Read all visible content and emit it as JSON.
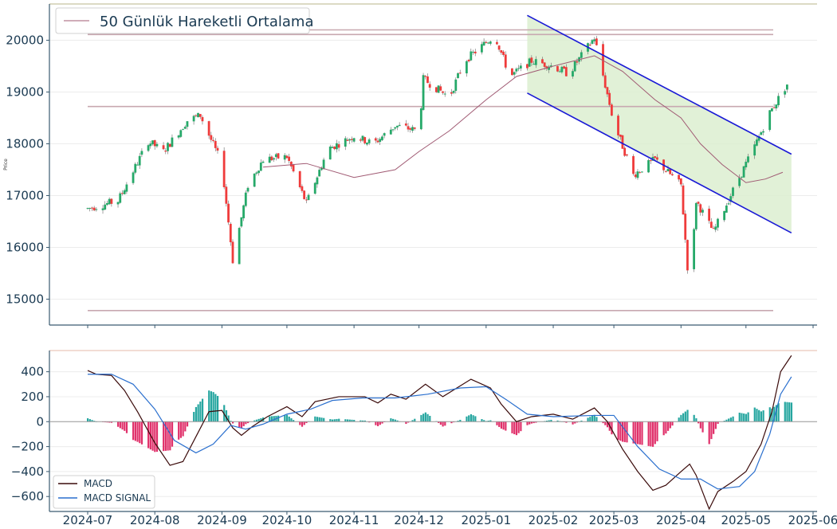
{
  "chart_data": [
    {
      "type": "candlestick",
      "ylabel": "Price",
      "ylim": [
        14500,
        20700
      ],
      "yticks": [
        15000,
        16000,
        17000,
        18000,
        19000,
        20000
      ],
      "legend": {
        "placement": "top-left",
        "entries": [
          {
            "name": "50 Günlük Hareketli Ortalama",
            "color": "#a05a73"
          }
        ]
      },
      "grid": true,
      "colors": {
        "up": "#26a969",
        "down": "#ef3b3b",
        "ma": "#a05a73",
        "level_lines": "#c8a8b0",
        "channel": "#1a1ad6",
        "channel_fill": "#dcefd0"
      },
      "price_path": [
        [
          "2024-07-01",
          16750
        ],
        [
          "2024-07-15",
          16900
        ],
        [
          "2024-07-29",
          18050
        ],
        [
          "2024-08-05",
          17850
        ],
        [
          "2024-08-16",
          18450
        ],
        [
          "2024-08-22",
          18550
        ],
        [
          "2024-09-01",
          17600
        ],
        [
          "2024-09-06",
          15750
        ],
        [
          "2024-09-13",
          17200
        ],
        [
          "2024-09-20",
          17700
        ],
        [
          "2024-10-01",
          17750
        ],
        [
          "2024-10-10",
          16850
        ],
        [
          "2024-10-20",
          17900
        ],
        [
          "2024-11-01",
          18150
        ],
        [
          "2024-11-10",
          18000
        ],
        [
          "2024-11-20",
          18350
        ],
        [
          "2024-12-01",
          18250
        ],
        [
          "2024-12-03",
          19250
        ],
        [
          "2024-12-15",
          18900
        ],
        [
          "2024-12-22",
          19600
        ],
        [
          "2025-01-05",
          20100
        ],
        [
          "2025-01-12",
          19300
        ],
        [
          "2025-01-22",
          19600
        ],
        [
          "2025-02-01",
          19500
        ],
        [
          "2025-02-08",
          19350
        ],
        [
          "2025-02-20",
          20050
        ],
        [
          "2025-03-01",
          18400
        ],
        [
          "2025-03-10",
          17400
        ],
        [
          "2025-03-20",
          17700
        ],
        [
          "2025-04-01",
          17200
        ],
        [
          "2025-04-05",
          15100
        ],
        [
          "2025-04-08",
          16900
        ],
        [
          "2025-04-16",
          16300
        ],
        [
          "2025-04-25",
          17100
        ],
        [
          "2025-05-05",
          17950
        ],
        [
          "2025-05-12",
          18600
        ],
        [
          "2025-05-20",
          19150
        ]
      ],
      "ma_50": [
        [
          "2024-09-20",
          17550
        ],
        [
          "2024-10-10",
          17620
        ],
        [
          "2024-11-01",
          17350
        ],
        [
          "2024-11-20",
          17500
        ],
        [
          "2024-12-01",
          17850
        ],
        [
          "2024-12-15",
          18250
        ],
        [
          "2025-01-01",
          18850
        ],
        [
          "2025-01-15",
          19300
        ],
        [
          "2025-02-01",
          19500
        ],
        [
          "2025-02-20",
          19700
        ],
        [
          "2025-03-05",
          19400
        ],
        [
          "2025-03-20",
          18850
        ],
        [
          "2025-04-01",
          18500
        ],
        [
          "2025-04-10",
          18000
        ],
        [
          "2025-04-20",
          17600
        ],
        [
          "2025-05-01",
          17250
        ],
        [
          "2025-05-10",
          17320
        ],
        [
          "2025-05-18",
          17450
        ]
      ],
      "horizontal_levels": [
        20200,
        20110,
        18720,
        14780
      ],
      "channel": {
        "upper": [
          [
            "2025-01-20",
            20480
          ],
          [
            "2025-05-22",
            17800
          ]
        ],
        "lower": [
          [
            "2025-01-20",
            18980
          ],
          [
            "2025-05-22",
            16280
          ]
        ]
      }
    },
    {
      "type": "line+bar",
      "ylim": [
        -720,
        570
      ],
      "yticks": [
        -600,
        -400,
        -200,
        0,
        200,
        400
      ],
      "xticks": [
        "2024-07",
        "2024-08",
        "2024-09",
        "2024-10",
        "2024-11",
        "2024-12",
        "2025-01",
        "2025-02",
        "2025-03",
        "2025-04",
        "2025-05",
        "2025-06"
      ],
      "legend": {
        "placement": "bottom-left",
        "entries": [
          {
            "name": "MACD",
            "color": "#3a0a0a"
          },
          {
            "name": "MACD SIGNAL",
            "color": "#2a6fce"
          }
        ]
      },
      "grid": true,
      "colors": {
        "hist_pos": "#26a6a0",
        "hist_neg": "#e0306a",
        "zero_line": "#999999"
      },
      "series": [
        {
          "name": "MACD",
          "points": [
            [
              "2024-07-01",
              410
            ],
            [
              "2024-07-05",
              380
            ],
            [
              "2024-07-12",
              370
            ],
            [
              "2024-07-18",
              250
            ],
            [
              "2024-07-24",
              80
            ],
            [
              "2024-08-01",
              -170
            ],
            [
              "2024-08-08",
              -350
            ],
            [
              "2024-08-14",
              -320
            ],
            [
              "2024-08-20",
              -120
            ],
            [
              "2024-08-26",
              80
            ],
            [
              "2024-09-01",
              90
            ],
            [
              "2024-09-06",
              -50
            ],
            [
              "2024-09-10",
              -110
            ],
            [
              "2024-09-15",
              -40
            ],
            [
              "2024-09-22",
              40
            ],
            [
              "2024-10-01",
              120
            ],
            [
              "2024-10-08",
              40
            ],
            [
              "2024-10-14",
              160
            ],
            [
              "2024-10-25",
              200
            ],
            [
              "2024-11-06",
              200
            ],
            [
              "2024-11-12",
              150
            ],
            [
              "2024-11-18",
              220
            ],
            [
              "2024-11-25",
              180
            ],
            [
              "2024-12-04",
              300
            ],
            [
              "2024-12-12",
              200
            ],
            [
              "2024-12-25",
              340
            ],
            [
              "2025-01-03",
              270
            ],
            [
              "2025-01-08",
              140
            ],
            [
              "2025-01-15",
              0
            ],
            [
              "2025-01-22",
              40
            ],
            [
              "2025-02-01",
              60
            ],
            [
              "2025-02-10",
              20
            ],
            [
              "2025-02-20",
              110
            ],
            [
              "2025-02-26",
              0
            ],
            [
              "2025-03-05",
              -220
            ],
            [
              "2025-03-12",
              -400
            ],
            [
              "2025-03-19",
              -550
            ],
            [
              "2025-03-25",
              -510
            ],
            [
              "2025-04-01",
              -400
            ],
            [
              "2025-04-05",
              -340
            ],
            [
              "2025-04-08",
              -430
            ],
            [
              "2025-04-14",
              -700
            ],
            [
              "2025-04-18",
              -560
            ],
            [
              "2025-04-25",
              -480
            ],
            [
              "2025-05-01",
              -400
            ],
            [
              "2025-05-08",
              -180
            ],
            [
              "2025-05-13",
              80
            ],
            [
              "2025-05-17",
              400
            ],
            [
              "2025-05-22",
              530
            ]
          ]
        },
        {
          "name": "MACD SIGNAL",
          "points": [
            [
              "2024-07-01",
              380
            ],
            [
              "2024-07-12",
              380
            ],
            [
              "2024-07-22",
              300
            ],
            [
              "2024-08-01",
              100
            ],
            [
              "2024-08-10",
              -150
            ],
            [
              "2024-08-20",
              -250
            ],
            [
              "2024-08-28",
              -180
            ],
            [
              "2024-09-05",
              -30
            ],
            [
              "2024-09-12",
              -60
            ],
            [
              "2024-09-20",
              -20
            ],
            [
              "2024-10-01",
              60
            ],
            [
              "2024-10-12",
              100
            ],
            [
              "2024-10-22",
              170
            ],
            [
              "2024-11-05",
              190
            ],
            [
              "2024-11-20",
              190
            ],
            [
              "2024-12-05",
              220
            ],
            [
              "2024-12-20",
              270
            ],
            [
              "2025-01-01",
              280
            ],
            [
              "2025-01-10",
              180
            ],
            [
              "2025-01-20",
              60
            ],
            [
              "2025-02-01",
              40
            ],
            [
              "2025-02-20",
              50
            ],
            [
              "2025-03-01",
              50
            ],
            [
              "2025-03-12",
              -200
            ],
            [
              "2025-03-22",
              -380
            ],
            [
              "2025-04-01",
              -460
            ],
            [
              "2025-04-10",
              -460
            ],
            [
              "2025-04-18",
              -540
            ],
            [
              "2025-04-28",
              -520
            ],
            [
              "2025-05-05",
              -400
            ],
            [
              "2025-05-12",
              -100
            ],
            [
              "2025-05-17",
              220
            ],
            [
              "2025-05-22",
              360
            ]
          ]
        }
      ]
    }
  ]
}
